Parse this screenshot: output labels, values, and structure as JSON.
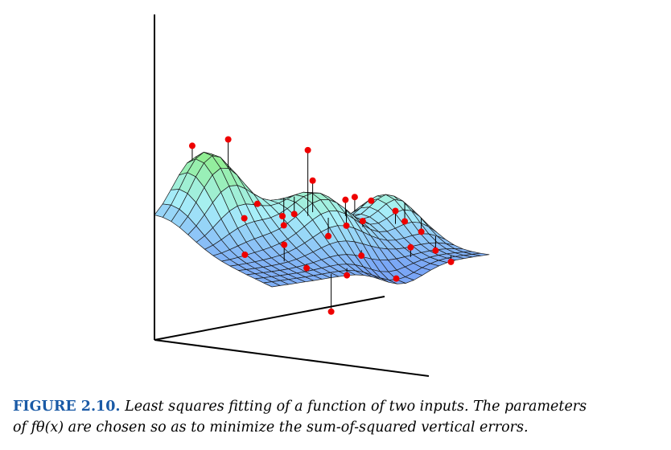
{
  "figure": {
    "label": "FIGURE 2.10.",
    "caption_line1": "Least squares fitting of a function of two inputs. The parameters",
    "caption_line2": "of fθ(x) are chosen so as to minimize the sum-of-squared vertical errors."
  },
  "colors": {
    "surface_high": "#90ee90",
    "surface_mid": "#a8f0f8",
    "surface_low": "#7aa6f6",
    "point": "#ee0000",
    "axes": "#000000"
  },
  "plot": {
    "surface": "least-squares fitted surface over two inputs",
    "grid": true,
    "points_shown": true,
    "residual_lines_shown": true
  }
}
